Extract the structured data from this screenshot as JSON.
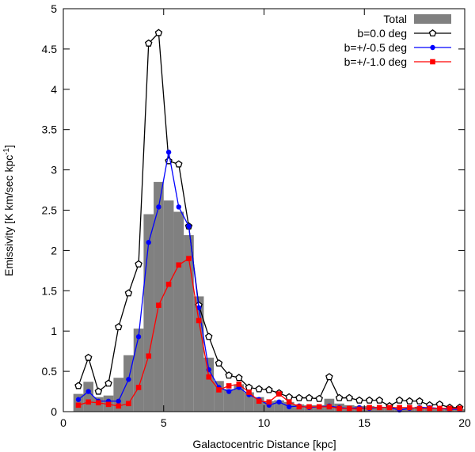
{
  "chart_data": {
    "type": "bar+line",
    "title": "",
    "xlabel": "Galactocentric Distance [kpc]",
    "ylabel_main": "Emissivity [K km/sec kpc",
    "ylabel_sup": "-1",
    "ylabel_end": "]",
    "xlim": [
      0,
      20
    ],
    "ylim": [
      0,
      5
    ],
    "xticks": [
      0,
      5,
      10,
      15,
      20
    ],
    "yticks": [
      0,
      0.5,
      1,
      1.5,
      2,
      2.5,
      3,
      3.5,
      4,
      4.5,
      5
    ],
    "xtick_labels": [
      "0",
      "5",
      "10",
      "15",
      "20"
    ],
    "ytick_labels": [
      "0",
      "0.5",
      "1",
      "1.5",
      "2",
      "2.5",
      "3",
      "3.5",
      "4",
      "4.5",
      "5"
    ],
    "legend_position": "top-right",
    "histogram": {
      "name": "Total",
      "color": "#808080",
      "bin_width": 0.5,
      "bin_starts": [
        0.5,
        1.0,
        1.5,
        2.0,
        2.5,
        3.0,
        3.5,
        4.0,
        4.5,
        5.0,
        5.5,
        6.0,
        6.5,
        7.0,
        7.5,
        8.0,
        8.5,
        9.0,
        9.5,
        10.0,
        10.5,
        11.0,
        11.5,
        12.0,
        12.5,
        13.0,
        13.5,
        14.0,
        14.5,
        15.0,
        15.5,
        16.0,
        16.5,
        17.0,
        17.5,
        18.0,
        18.5,
        19.0,
        19.5
      ],
      "values": [
        0.22,
        0.37,
        0.18,
        0.2,
        0.42,
        0.7,
        1.03,
        2.45,
        2.85,
        2.62,
        2.48,
        2.19,
        1.43,
        0.67,
        0.38,
        0.28,
        0.34,
        0.24,
        0.18,
        0.13,
        0.14,
        0.12,
        0.09,
        0.08,
        0.08,
        0.16,
        0.1,
        0.08,
        0.07,
        0.07,
        0.06,
        0.06,
        0.05,
        0.05,
        0.06,
        0.04,
        0.04,
        0.03,
        0.03
      ]
    },
    "series": [
      {
        "name": "b=0.0 deg",
        "color": "#000000",
        "marker": "open-pentagon",
        "x": [
          0.75,
          1.25,
          1.75,
          2.25,
          2.75,
          3.25,
          3.75,
          4.25,
          4.75,
          5.25,
          5.75,
          6.25,
          6.75,
          7.25,
          7.75,
          8.25,
          8.75,
          9.25,
          9.75,
          10.25,
          10.75,
          11.25,
          11.75,
          12.25,
          12.75,
          13.25,
          13.75,
          14.25,
          14.75,
          15.25,
          15.75,
          16.25,
          16.75,
          17.25,
          17.75,
          18.25,
          18.75,
          19.25,
          19.75
        ],
        "y": [
          0.32,
          0.67,
          0.25,
          0.35,
          1.05,
          1.47,
          1.83,
          4.57,
          4.7,
          3.11,
          3.07,
          2.3,
          1.32,
          0.93,
          0.6,
          0.45,
          0.42,
          0.3,
          0.28,
          0.27,
          0.23,
          0.18,
          0.17,
          0.17,
          0.16,
          0.43,
          0.17,
          0.17,
          0.14,
          0.14,
          0.14,
          0.07,
          0.14,
          0.13,
          0.13,
          0.08,
          0.09,
          0.05,
          0.05
        ]
      },
      {
        "name": "b=+/-0.5 deg",
        "color": "#0000ff",
        "marker": "filled-circle",
        "x": [
          0.75,
          1.25,
          1.75,
          2.25,
          2.75,
          3.25,
          3.75,
          4.25,
          4.75,
          5.25,
          5.75,
          6.25,
          6.75,
          7.25,
          7.75,
          8.25,
          8.75,
          9.25,
          9.75,
          10.25,
          10.75,
          11.25,
          11.75,
          12.25,
          12.75,
          13.25,
          13.75,
          14.25,
          14.75,
          15.25,
          15.75,
          16.25,
          16.75,
          17.25,
          17.75,
          18.25,
          18.75,
          19.25,
          19.75
        ],
        "y": [
          0.15,
          0.25,
          0.13,
          0.13,
          0.13,
          0.4,
          0.93,
          2.1,
          2.54,
          3.22,
          2.54,
          2.3,
          1.29,
          0.52,
          0.3,
          0.25,
          0.3,
          0.21,
          0.15,
          0.08,
          0.12,
          0.06,
          0.07,
          0.05,
          0.06,
          0.07,
          0.05,
          0.04,
          0.05,
          0.04,
          0.05,
          0.05,
          0.02,
          0.04,
          0.05,
          0.05,
          0.04,
          0.03,
          0.03
        ]
      },
      {
        "name": "b=+/-1.0 deg",
        "color": "#ff0000",
        "marker": "filled-square",
        "x": [
          0.75,
          1.25,
          1.75,
          2.25,
          2.75,
          3.25,
          3.75,
          4.25,
          4.75,
          5.25,
          5.75,
          6.25,
          6.75,
          7.25,
          7.75,
          8.25,
          8.75,
          9.25,
          9.75,
          10.25,
          10.75,
          11.25,
          11.75,
          12.25,
          12.75,
          13.25,
          13.75,
          14.25,
          14.75,
          15.25,
          15.75,
          16.25,
          16.75,
          17.25,
          17.75,
          18.25,
          18.75,
          19.25,
          19.75
        ],
        "y": [
          0.08,
          0.12,
          0.11,
          0.09,
          0.07,
          0.1,
          0.3,
          0.69,
          1.32,
          1.58,
          1.82,
          1.9,
          1.13,
          0.43,
          0.27,
          0.32,
          0.34,
          0.24,
          0.13,
          0.12,
          0.22,
          0.12,
          0.06,
          0.06,
          0.06,
          0.06,
          0.04,
          0.04,
          0.03,
          0.05,
          0.05,
          0.05,
          0.05,
          0.05,
          0.04,
          0.04,
          0.04,
          0.04,
          0.04
        ]
      }
    ]
  }
}
